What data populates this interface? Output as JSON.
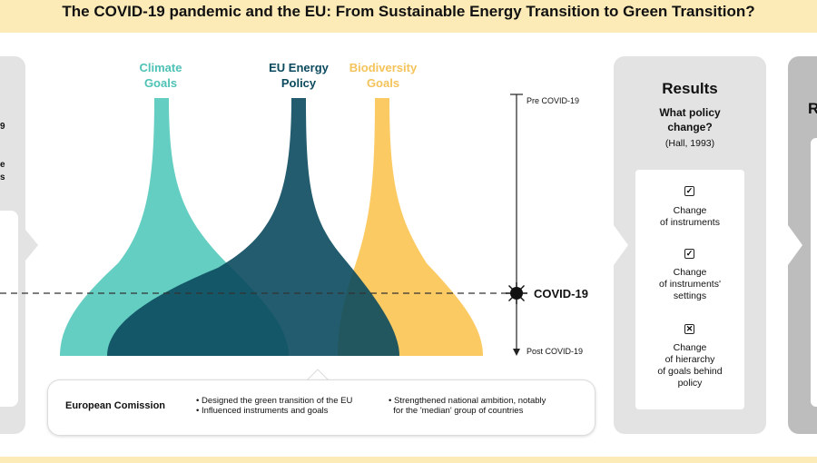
{
  "title": "The COVID-19 pandemic and the EU: From Sustainable Energy Transition to Green Transition?",
  "left_panel": {
    "fragments": [
      "9",
      "e",
      "s"
    ]
  },
  "flows": [
    {
      "label_lines": [
        "Climate",
        "Goals"
      ],
      "color": "#5ccbbf"
    },
    {
      "label_lines": [
        "EU Energy",
        "Policy"
      ],
      "color": "#0b4a5e"
    },
    {
      "label_lines": [
        "Biodiversity",
        "Goals"
      ],
      "color": "#fbc75b"
    }
  ],
  "timeline": {
    "pre_label": "Pre COVID-19",
    "event_label": "COVID-19",
    "post_label": "Post COVID-19"
  },
  "european_commission": {
    "label": "European Comission",
    "bullets_left": [
      "Designed the green transition of the EU",
      "Influenced instruments and goals"
    ],
    "bullets_right": [
      "Strengthened national ambition, notably",
      "for the 'median' group of countries"
    ]
  },
  "results": {
    "title": "Results",
    "question_lines": [
      "What policy",
      "change?"
    ],
    "citation": "(Hall, 1993)",
    "items": [
      {
        "icon": "checked-box-icon",
        "mark": "✓",
        "lines": [
          "Change",
          "of instruments"
        ]
      },
      {
        "icon": "checked-box-icon",
        "mark": "✓",
        "lines": [
          "Change",
          "of instruments'",
          "settings"
        ]
      },
      {
        "icon": "crossed-box-icon",
        "mark": "✕",
        "lines": [
          "Change",
          "of hierarchy",
          "of goals behind",
          "policy"
        ]
      }
    ]
  },
  "right_panel": {
    "fragment": "R"
  }
}
